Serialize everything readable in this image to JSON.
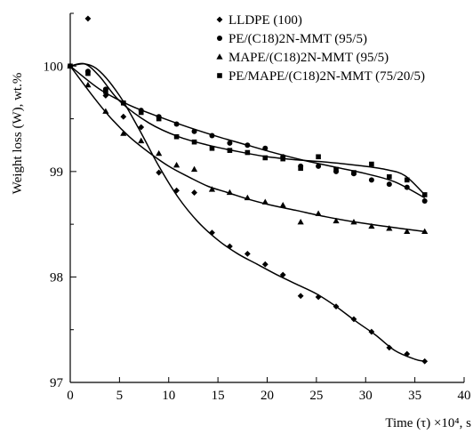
{
  "chart_data": {
    "type": "scatter",
    "ylabel": "Weight loss (W),  wt.%",
    "xlabel": "Time (τ) ×10⁴, s",
    "xlim": [
      0,
      40
    ],
    "ylim": [
      97,
      100.5
    ],
    "xticks": [
      0,
      5,
      10,
      15,
      20,
      25,
      30,
      35,
      40
    ],
    "yticks": [
      97,
      98,
      99,
      100
    ],
    "grid": false,
    "legend_position": "top-right",
    "series": [
      {
        "name": "LLDPE (100)",
        "marker": "diamond",
        "points": [
          [
            0,
            100
          ],
          [
            1.8,
            100.45
          ],
          [
            3.6,
            99.72
          ],
          [
            5.4,
            99.52
          ],
          [
            7.2,
            99.42
          ],
          [
            9.0,
            98.99
          ],
          [
            10.8,
            98.82
          ],
          [
            12.6,
            98.8
          ],
          [
            14.4,
            98.42
          ],
          [
            16.2,
            98.29
          ],
          [
            18.0,
            98.22
          ],
          [
            19.8,
            98.12
          ],
          [
            21.6,
            98.02
          ],
          [
            23.4,
            97.82
          ],
          [
            25.2,
            97.81
          ],
          [
            27.0,
            97.72
          ],
          [
            28.8,
            97.6
          ],
          [
            30.6,
            97.48
          ],
          [
            32.4,
            97.33
          ],
          [
            34.2,
            97.27
          ],
          [
            36.0,
            97.2
          ]
        ],
        "curve": [
          [
            0,
            100
          ],
          [
            1.5,
            100.02
          ],
          [
            3,
            99.95
          ],
          [
            5,
            99.72
          ],
          [
            7,
            99.4
          ],
          [
            9,
            99.05
          ],
          [
            11,
            98.75
          ],
          [
            13,
            98.52
          ],
          [
            15,
            98.35
          ],
          [
            17,
            98.22
          ],
          [
            19,
            98.12
          ],
          [
            21,
            98.02
          ],
          [
            23,
            97.93
          ],
          [
            25,
            97.84
          ],
          [
            27,
            97.72
          ],
          [
            29,
            97.58
          ],
          [
            31,
            97.45
          ],
          [
            33,
            97.3
          ],
          [
            35,
            97.22
          ],
          [
            36,
            97.2
          ]
        ]
      },
      {
        "name": "PE/(C18)2N-MMT (95/5)",
        "marker": "circle",
        "points": [
          [
            0,
            100
          ],
          [
            1.8,
            99.95
          ],
          [
            3.6,
            99.78
          ],
          [
            5.4,
            99.65
          ],
          [
            7.2,
            99.58
          ],
          [
            9.0,
            99.52
          ],
          [
            10.8,
            99.45
          ],
          [
            12.6,
            99.38
          ],
          [
            14.4,
            99.34
          ],
          [
            16.2,
            99.27
          ],
          [
            18.0,
            99.25
          ],
          [
            19.8,
            99.22
          ],
          [
            21.6,
            99.14
          ],
          [
            23.4,
            99.05
          ],
          [
            25.2,
            99.05
          ],
          [
            27.0,
            99.0
          ],
          [
            28.8,
            98.98
          ],
          [
            30.6,
            98.92
          ],
          [
            32.4,
            98.88
          ],
          [
            34.2,
            98.85
          ],
          [
            36.0,
            98.72
          ]
        ],
        "curve": [
          [
            0,
            100
          ],
          [
            3,
            99.78
          ],
          [
            6,
            99.63
          ],
          [
            9,
            99.52
          ],
          [
            12,
            99.42
          ],
          [
            15,
            99.33
          ],
          [
            18,
            99.25
          ],
          [
            21,
            99.17
          ],
          [
            24,
            99.1
          ],
          [
            27,
            99.04
          ],
          [
            30,
            98.98
          ],
          [
            33,
            98.9
          ],
          [
            36,
            98.75
          ]
        ]
      },
      {
        "name": "MAPE/(C18)2N-MMT (95/5)",
        "marker": "triangle",
        "points": [
          [
            0,
            100
          ],
          [
            1.8,
            99.82
          ],
          [
            3.6,
            99.57
          ],
          [
            5.4,
            99.36
          ],
          [
            7.2,
            99.29
          ],
          [
            9.0,
            99.17
          ],
          [
            10.8,
            99.06
          ],
          [
            12.6,
            99.02
          ],
          [
            14.4,
            98.83
          ],
          [
            16.2,
            98.8
          ],
          [
            18.0,
            98.75
          ],
          [
            19.8,
            98.71
          ],
          [
            21.6,
            98.68
          ],
          [
            23.4,
            98.52
          ],
          [
            25.2,
            98.6
          ],
          [
            27.0,
            98.53
          ],
          [
            28.8,
            98.52
          ],
          [
            30.6,
            98.48
          ],
          [
            32.4,
            98.46
          ],
          [
            34.2,
            98.43
          ],
          [
            36.0,
            98.43
          ]
        ],
        "curve": [
          [
            0,
            100
          ],
          [
            2,
            99.75
          ],
          [
            4,
            99.52
          ],
          [
            6,
            99.33
          ],
          [
            8,
            99.18
          ],
          [
            10,
            99.05
          ],
          [
            12,
            98.95
          ],
          [
            14,
            98.86
          ],
          [
            16,
            98.8
          ],
          [
            18,
            98.74
          ],
          [
            20,
            98.69
          ],
          [
            23,
            98.63
          ],
          [
            26,
            98.57
          ],
          [
            29,
            98.52
          ],
          [
            32,
            98.48
          ],
          [
            36,
            98.43
          ]
        ]
      },
      {
        "name": "PE/MAPE/(C18)2N-MMT (75/20/5)",
        "marker": "square",
        "points": [
          [
            0,
            100
          ],
          [
            1.8,
            99.93
          ],
          [
            3.6,
            99.76
          ],
          [
            5.4,
            99.65
          ],
          [
            7.2,
            99.56
          ],
          [
            9.0,
            99.5
          ],
          [
            10.8,
            99.33
          ],
          [
            12.6,
            99.28
          ],
          [
            14.4,
            99.22
          ],
          [
            16.2,
            99.2
          ],
          [
            18.0,
            99.18
          ],
          [
            19.8,
            99.13
          ],
          [
            21.6,
            99.12
          ],
          [
            23.4,
            99.03
          ],
          [
            25.2,
            99.14
          ],
          [
            27.0,
            99.02
          ],
          [
            28.8,
            98.99
          ],
          [
            30.6,
            99.07
          ],
          [
            32.4,
            98.95
          ],
          [
            34.2,
            98.92
          ],
          [
            36.0,
            98.78
          ]
        ],
        "curve": [
          [
            0,
            100
          ],
          [
            1.5,
            100.02
          ],
          [
            3,
            99.9
          ],
          [
            5,
            99.67
          ],
          [
            8,
            99.46
          ],
          [
            11,
            99.33
          ],
          [
            14,
            99.25
          ],
          [
            17,
            99.19
          ],
          [
            20,
            99.14
          ],
          [
            23,
            99.11
          ],
          [
            26,
            99.09
          ],
          [
            29,
            99.06
          ],
          [
            32,
            99.02
          ],
          [
            34,
            98.96
          ],
          [
            36,
            98.78
          ]
        ]
      }
    ]
  }
}
